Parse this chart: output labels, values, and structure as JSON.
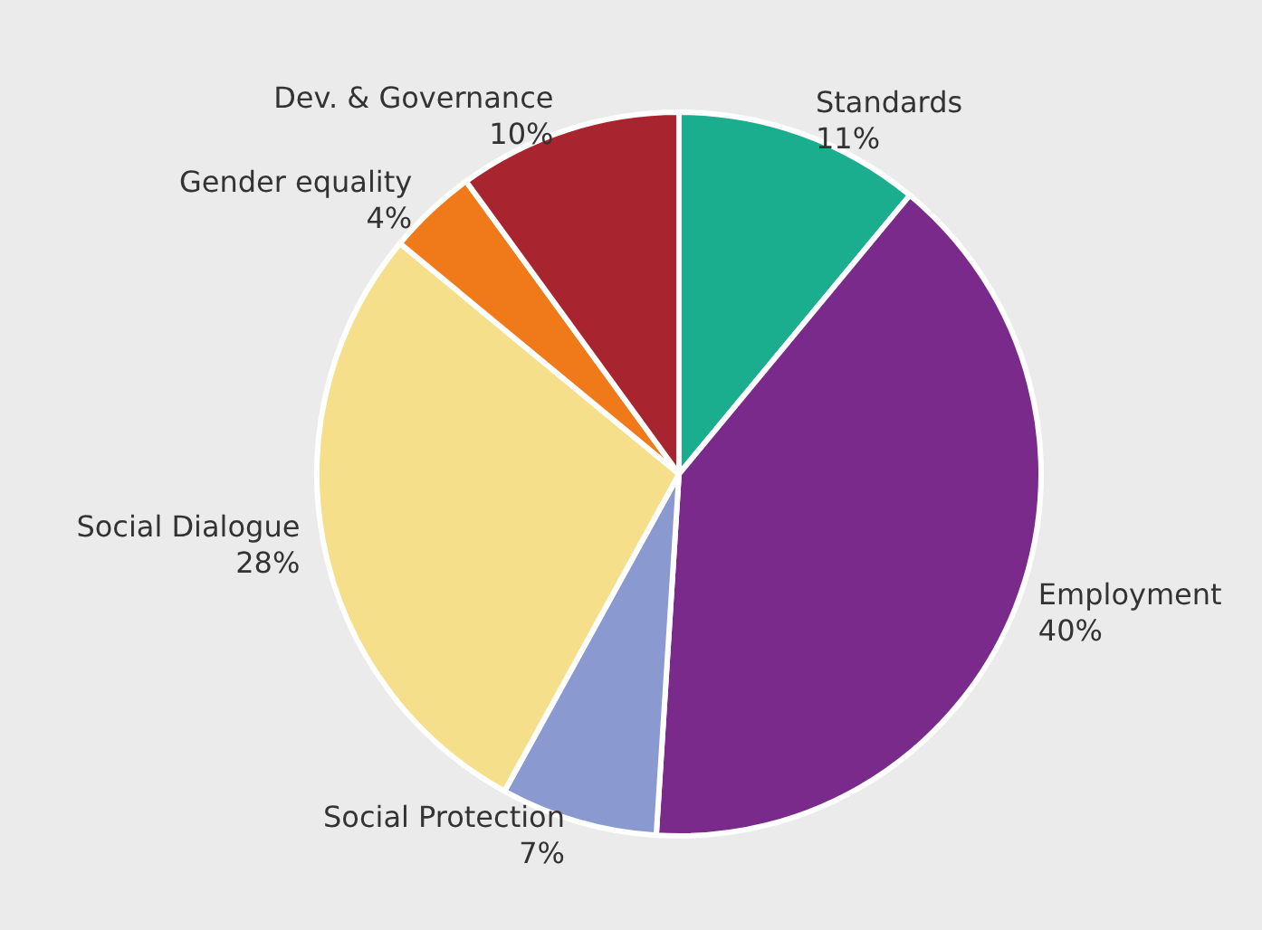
{
  "chart_data": {
    "type": "pie",
    "categories": [
      "Standards",
      "Employment",
      "Social Protection",
      "Social Dialogue",
      "Gender equality",
      "Dev. & Governance"
    ],
    "values": [
      11,
      40,
      7,
      28,
      4,
      10
    ],
    "value_labels": [
      "11%",
      "40%",
      "7%",
      "28%",
      "4%",
      "10%"
    ],
    "colors": [
      "#1aae8f",
      "#7a2a8a",
      "#8a9ad0",
      "#f5df8a",
      "#f07a1a",
      "#a8242e"
    ],
    "legend": false
  }
}
